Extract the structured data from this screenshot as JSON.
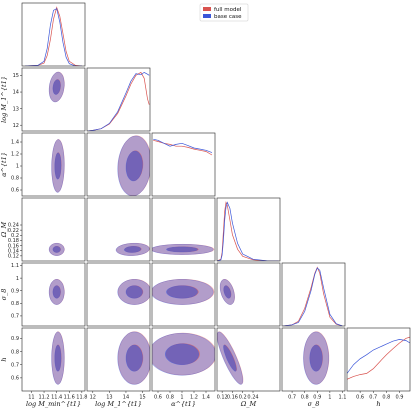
{
  "legend": {
    "position": "top-center",
    "entries": [
      {
        "label": "full model",
        "color": "#d9534f"
      },
      {
        "label": "base case",
        "color": "#3b56d9"
      }
    ]
  },
  "chart_data": {
    "type": "corner",
    "title": "",
    "parameters": [
      {
        "key": "logMmin",
        "label": "log M_min^{t1}",
        "range": [
          10.85,
          11.85
        ],
        "ticks": [
          11.0,
          11.2,
          11.4,
          11.6,
          11.8
        ]
      },
      {
        "key": "logM1",
        "label": "log M_1^{t1}",
        "range": [
          11.65,
          15.45
        ],
        "ticks": [
          12,
          13,
          14,
          15
        ]
      },
      {
        "key": "alpha",
        "label": "α^{t1}",
        "range": [
          0.5,
          1.55
        ],
        "ticks": [
          0.6,
          0.8,
          1.0,
          1.2,
          1.4
        ]
      },
      {
        "key": "OmegaM",
        "label": "Ω_M",
        "range": [
          0.1,
          0.345
        ],
        "ticks": [
          0.12,
          0.16,
          0.2,
          0.24
        ]
      },
      {
        "key": "sigma8",
        "label": "σ_8",
        "range": [
          0.62,
          1.12
        ],
        "ticks": [
          0.7,
          0.8,
          0.9,
          1.0,
          1.1
        ]
      },
      {
        "key": "h",
        "label": "h",
        "range": [
          0.5,
          0.98
        ],
        "ticks": [
          0.6,
          0.7,
          0.8,
          0.9
        ]
      }
    ],
    "row_ticks": {
      "logM1": [
        12,
        13,
        14,
        15
      ],
      "alpha": [
        0.6,
        0.8,
        1.0,
        1.2,
        1.4
      ],
      "OmegaM": [
        0.12,
        0.14,
        0.16,
        0.18,
        0.2,
        0.22,
        0.24
      ],
      "sigma8": [
        0.7,
        0.8,
        0.9,
        1.0,
        1.1
      ],
      "h": [
        0.6,
        0.7,
        0.8,
        0.9
      ]
    },
    "series": [
      {
        "name": "full model",
        "color": "#d9534f",
        "marginals": {
          "logMmin": {
            "x": [
              10.9,
              11.1,
              11.2,
              11.25,
              11.3,
              11.35,
              11.4,
              11.45,
              11.5,
              11.55,
              11.6,
              11.7,
              11.8
            ],
            "y": [
              0.0,
              0.01,
              0.05,
              0.18,
              0.45,
              0.8,
              1.0,
              0.85,
              0.55,
              0.25,
              0.08,
              0.01,
              0.0
            ]
          },
          "logM1": {
            "x": [
              11.7,
              12.0,
              12.5,
              13.0,
              13.5,
              14.0,
              14.3,
              14.6,
              14.9,
              15.1,
              15.3,
              15.4
            ],
            "y": [
              0.0,
              0.01,
              0.04,
              0.12,
              0.3,
              0.6,
              0.8,
              0.95,
              1.0,
              0.9,
              0.55,
              0.45
            ]
          },
          "alpha": {
            "x": [
              0.52,
              0.6,
              0.7,
              0.8,
              0.9,
              1.0,
              1.1,
              1.2,
              1.3,
              1.4,
              1.5
            ],
            "y": [
              0.95,
              0.93,
              0.9,
              0.88,
              0.85,
              0.85,
              0.83,
              0.8,
              0.78,
              0.76,
              0.7
            ]
          },
          "OmegaM": {
            "x": [
              0.1,
              0.115,
              0.12,
              0.125,
              0.13,
              0.135,
              0.14,
              0.15,
              0.16,
              0.18,
              0.2,
              0.24,
              0.3,
              0.34
            ],
            "y": [
              0.0,
              0.03,
              0.15,
              0.5,
              0.85,
              1.0,
              0.95,
              0.7,
              0.45,
              0.2,
              0.08,
              0.02,
              0.0,
              0.0
            ]
          },
          "sigma8": {
            "x": [
              0.63,
              0.7,
              0.75,
              0.8,
              0.85,
              0.88,
              0.9,
              0.92,
              0.95,
              1.0,
              1.05,
              1.1
            ],
            "y": [
              0.0,
              0.02,
              0.08,
              0.3,
              0.65,
              0.9,
              1.0,
              0.9,
              0.55,
              0.15,
              0.03,
              0.0
            ]
          },
          "h": {
            "x": [
              0.5,
              0.55,
              0.6,
              0.65,
              0.7,
              0.75,
              0.8,
              0.85,
              0.9,
              0.95,
              0.98
            ],
            "y": [
              0.2,
              0.25,
              0.28,
              0.3,
              0.38,
              0.5,
              0.62,
              0.72,
              0.82,
              0.9,
              0.92
            ]
          }
        }
      },
      {
        "name": "base case",
        "color": "#3b56d9",
        "marginals": {
          "logMmin": {
            "x": [
              10.9,
              11.1,
              11.2,
              11.25,
              11.3,
              11.35,
              11.4,
              11.45,
              11.5,
              11.55,
              11.6,
              11.7,
              11.8
            ],
            "y": [
              0.0,
              0.01,
              0.08,
              0.3,
              0.7,
              0.95,
              0.98,
              0.75,
              0.4,
              0.15,
              0.04,
              0.0,
              0.0
            ]
          },
          "logM1": {
            "x": [
              11.7,
              12.0,
              12.5,
              13.0,
              13.5,
              14.0,
              14.3,
              14.6,
              14.9,
              15.1,
              15.3,
              15.4
            ],
            "y": [
              0.0,
              0.01,
              0.04,
              0.13,
              0.33,
              0.65,
              0.85,
              0.98,
              0.96,
              1.0,
              0.97,
              0.95
            ]
          },
          "alpha": {
            "x": [
              0.52,
              0.6,
              0.7,
              0.8,
              0.9,
              1.0,
              1.1,
              1.2,
              1.3,
              1.4,
              1.5
            ],
            "y": [
              0.97,
              0.95,
              0.9,
              0.85,
              0.88,
              0.9,
              0.86,
              0.82,
              0.8,
              0.78,
              0.74
            ]
          },
          "OmegaM": {
            "x": [
              0.1,
              0.115,
              0.12,
              0.125,
              0.13,
              0.135,
              0.14,
              0.15,
              0.16,
              0.18,
              0.2,
              0.24,
              0.3,
              0.34
            ],
            "y": [
              0.0,
              0.02,
              0.1,
              0.35,
              0.7,
              0.92,
              1.0,
              0.9,
              0.65,
              0.3,
              0.12,
              0.03,
              0.0,
              0.0
            ]
          },
          "sigma8": {
            "x": [
              0.63,
              0.7,
              0.75,
              0.8,
              0.85,
              0.88,
              0.9,
              0.92,
              0.95,
              1.0,
              1.05,
              1.1
            ],
            "y": [
              0.0,
              0.02,
              0.06,
              0.25,
              0.6,
              0.88,
              0.99,
              0.95,
              0.65,
              0.2,
              0.04,
              0.0
            ]
          },
          "h": {
            "x": [
              0.5,
              0.55,
              0.6,
              0.65,
              0.7,
              0.75,
              0.8,
              0.85,
              0.9,
              0.95,
              0.98
            ],
            "y": [
              0.3,
              0.45,
              0.55,
              0.62,
              0.7,
              0.75,
              0.8,
              0.85,
              0.88,
              0.86,
              0.82
            ]
          }
        }
      }
    ],
    "joint_contours": [
      {
        "x": "logMmin",
        "y": "logM1",
        "center": [
          11.4,
          14.3
        ],
        "sd": [
          0.06,
          0.45
        ],
        "rho": 0.2
      },
      {
        "x": "logMmin",
        "y": "alpha",
        "center": [
          11.42,
          1.0
        ],
        "sd": [
          0.05,
          0.22
        ],
        "rho": 0.05
      },
      {
        "x": "logM1",
        "y": "alpha",
        "center": [
          14.5,
          1.0
        ],
        "sd": [
          0.5,
          0.25
        ],
        "rho": 0.1
      },
      {
        "x": "logMmin",
        "y": "OmegaM",
        "center": [
          11.4,
          0.145
        ],
        "sd": [
          0.06,
          0.012
        ],
        "rho": 0.0
      },
      {
        "x": "logM1",
        "y": "OmegaM",
        "center": [
          14.4,
          0.145
        ],
        "sd": [
          0.5,
          0.012
        ],
        "rho": 0.1
      },
      {
        "x": "alpha",
        "y": "OmegaM",
        "center": [
          1.0,
          0.145
        ],
        "sd": [
          0.26,
          0.01
        ],
        "rho": 0.0
      },
      {
        "x": "logMmin",
        "y": "sigma8",
        "center": [
          11.4,
          0.89
        ],
        "sd": [
          0.06,
          0.05
        ],
        "rho": 0.0
      },
      {
        "x": "logM1",
        "y": "sigma8",
        "center": [
          14.5,
          0.89
        ],
        "sd": [
          0.5,
          0.05
        ],
        "rho": 0.0
      },
      {
        "x": "alpha",
        "y": "sigma8",
        "center": [
          1.0,
          0.89
        ],
        "sd": [
          0.26,
          0.05
        ],
        "rho": 0.0
      },
      {
        "x": "OmegaM",
        "y": "sigma8",
        "center": [
          0.14,
          0.89
        ],
        "sd": [
          0.014,
          0.05
        ],
        "rho": -0.4
      },
      {
        "x": "logMmin",
        "y": "h",
        "center": [
          11.42,
          0.75
        ],
        "sd": [
          0.05,
          0.1
        ],
        "rho": 0.0
      },
      {
        "x": "logM1",
        "y": "h",
        "center": [
          14.5,
          0.75
        ],
        "sd": [
          0.5,
          0.1
        ],
        "rho": 0.0
      },
      {
        "x": "alpha",
        "y": "h",
        "center": [
          1.0,
          0.78
        ],
        "sd": [
          0.28,
          0.08
        ],
        "rho": 0.0
      },
      {
        "x": "OmegaM",
        "y": "h",
        "center": [
          0.15,
          0.75
        ],
        "sd": [
          0.025,
          0.1
        ],
        "rho": -0.85
      },
      {
        "x": "sigma8",
        "y": "h",
        "center": [
          0.89,
          0.75
        ],
        "sd": [
          0.05,
          0.1
        ],
        "rho": 0.0
      }
    ],
    "contour_levels_sigma": [
      1,
      2
    ],
    "grid": false
  }
}
